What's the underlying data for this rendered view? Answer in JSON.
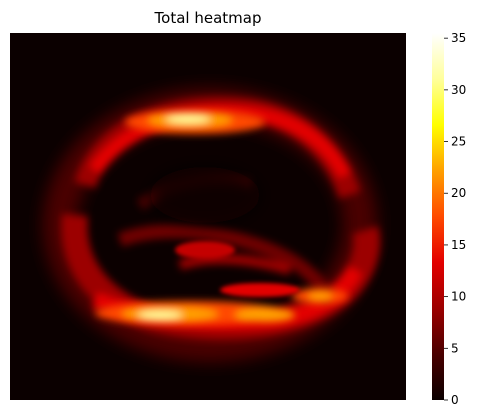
{
  "chart_data": {
    "type": "heatmap",
    "title": "Total heatmap",
    "xlabel": "",
    "ylabel": "",
    "axes_visible": false,
    "colormap": "hot",
    "colormap_stops": [
      "#0b0000",
      "#4a0000",
      "#9c0000",
      "#e30000",
      "#ff4a00",
      "#ffa000",
      "#ffff00",
      "#ffff9c",
      "#ffffff"
    ],
    "value_range": [
      0,
      35.5
    ],
    "colorbar": {
      "orientation": "vertical",
      "location": "right",
      "ticks": [
        0,
        5,
        10,
        15,
        20,
        25,
        30,
        35
      ],
      "tick_labels": [
        "0",
        "5",
        "10",
        "15",
        "20",
        "25",
        "30",
        "35"
      ]
    },
    "structure": {
      "description_pattern": "elliptical ring of high counts with hotspots at top and bottom",
      "hotspots": [
        {
          "region": "top",
          "peak_value": 35
        },
        {
          "region": "bottom",
          "peak_value": 33
        },
        {
          "region": "bottom-right",
          "peak_value": 28
        },
        {
          "region": "center-left",
          "peak_value": 15
        }
      ],
      "background_value": 0
    }
  }
}
